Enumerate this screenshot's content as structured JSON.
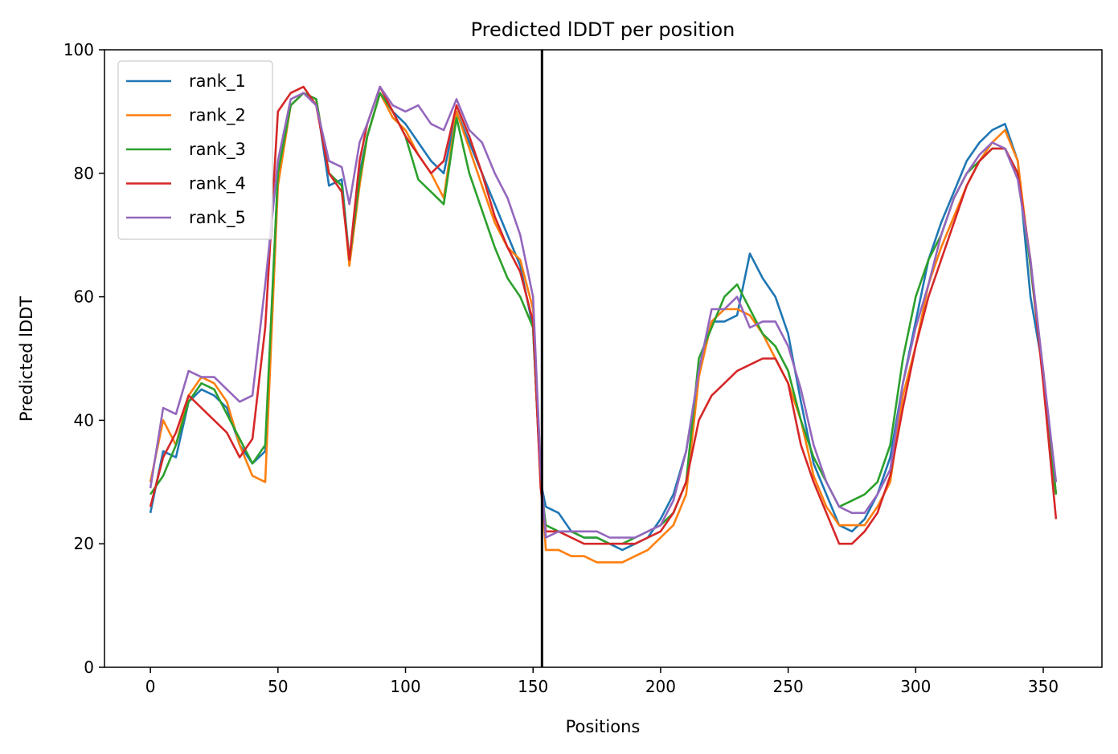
{
  "chart_data": {
    "type": "line",
    "title": "Predicted lDDT per position",
    "xlabel": "Positions",
    "ylabel": "Predicted lDDT",
    "xlim": [
      -18,
      373
    ],
    "ylim": [
      0,
      100
    ],
    "xticks": [
      0,
      50,
      100,
      150,
      200,
      250,
      300,
      350
    ],
    "yticks": [
      0,
      20,
      40,
      60,
      80,
      100
    ],
    "grid": false,
    "legend_position": "upper-left",
    "vline_x": 153.5,
    "vline_color": "#000000",
    "x": [
      0,
      5,
      10,
      15,
      20,
      25,
      30,
      35,
      40,
      45,
      50,
      55,
      60,
      65,
      70,
      75,
      78,
      82,
      85,
      90,
      95,
      100,
      105,
      110,
      115,
      120,
      125,
      130,
      135,
      140,
      145,
      150,
      153,
      155,
      160,
      165,
      170,
      175,
      180,
      185,
      190,
      195,
      200,
      205,
      210,
      215,
      220,
      225,
      230,
      235,
      240,
      245,
      250,
      255,
      260,
      265,
      270,
      275,
      280,
      285,
      290,
      295,
      300,
      305,
      310,
      315,
      320,
      325,
      330,
      335,
      340,
      345,
      350,
      355
    ],
    "series": [
      {
        "name": "rank_1",
        "color": "#1f77b4",
        "values": [
          25,
          35,
          34,
          43,
          45,
          44,
          42,
          36,
          33,
          35,
          80,
          91,
          93,
          92,
          78,
          79,
          66,
          80,
          86,
          93,
          90,
          88,
          85,
          82,
          80,
          90,
          85,
          80,
          75,
          70,
          65,
          55,
          30,
          26,
          25,
          22,
          21,
          21,
          20,
          19,
          20,
          21,
          24,
          28,
          35,
          48,
          56,
          56,
          57,
          67,
          63,
          60,
          54,
          43,
          33,
          28,
          23,
          22,
          24,
          28,
          34,
          46,
          56,
          66,
          72,
          77,
          82,
          85,
          87,
          88,
          82,
          60,
          48,
          28
        ]
      },
      {
        "name": "rank_2",
        "color": "#ff7f0e",
        "values": [
          30,
          40,
          36,
          44,
          47,
          46,
          43,
          36,
          31,
          30,
          78,
          91,
          93,
          92,
          80,
          78,
          65,
          78,
          86,
          93,
          89,
          87,
          83,
          80,
          76,
          90,
          84,
          78,
          72,
          68,
          66,
          58,
          32,
          19,
          19,
          18,
          18,
          17,
          17,
          17,
          18,
          19,
          21,
          23,
          28,
          47,
          56,
          58,
          58,
          57,
          54,
          50,
          46,
          40,
          31,
          26,
          23,
          23,
          23,
          26,
          30,
          44,
          52,
          62,
          68,
          73,
          78,
          82,
          85,
          87,
          82,
          65,
          48,
          28
        ]
      },
      {
        "name": "rank_3",
        "color": "#2ca02c",
        "values": [
          28,
          31,
          36,
          43,
          46,
          45,
          41,
          37,
          33,
          36,
          80,
          91,
          93,
          92,
          80,
          78,
          66,
          79,
          86,
          93,
          90,
          86,
          79,
          77,
          75,
          89,
          80,
          74,
          68,
          63,
          60,
          55,
          30,
          23,
          22,
          22,
          21,
          21,
          20,
          20,
          21,
          22,
          23,
          25,
          30,
          50,
          55,
          60,
          62,
          58,
          54,
          52,
          48,
          40,
          34,
          30,
          26,
          27,
          28,
          30,
          36,
          50,
          60,
          66,
          70,
          76,
          80,
          82,
          84,
          84,
          80,
          65,
          47,
          28
        ]
      },
      {
        "name": "rank_4",
        "color": "#d62728",
        "values": [
          26,
          34,
          38,
          44,
          42,
          40,
          38,
          34,
          37,
          55,
          90,
          93,
          94,
          91,
          80,
          77,
          66,
          82,
          88,
          94,
          90,
          86,
          83,
          80,
          82,
          91,
          86,
          80,
          73,
          68,
          64,
          56,
          29,
          22,
          22,
          21,
          20,
          20,
          20,
          20,
          20,
          21,
          22,
          25,
          30,
          40,
          44,
          46,
          48,
          49,
          50,
          50,
          46,
          36,
          30,
          25,
          20,
          20,
          22,
          25,
          31,
          42,
          52,
          60,
          66,
          72,
          78,
          82,
          84,
          84,
          80,
          66,
          46,
          24
        ]
      },
      {
        "name": "rank_5",
        "color": "#9467bd",
        "values": [
          29,
          42,
          41,
          48,
          47,
          47,
          45,
          43,
          44,
          62,
          82,
          92,
          93,
          91,
          82,
          81,
          75,
          85,
          88,
          94,
          91,
          90,
          91,
          88,
          87,
          92,
          87,
          85,
          80,
          76,
          70,
          60,
          32,
          21,
          22,
          22,
          22,
          22,
          21,
          21,
          21,
          22,
          23,
          27,
          35,
          48,
          58,
          58,
          60,
          55,
          56,
          56,
          52,
          45,
          36,
          30,
          26,
          25,
          25,
          28,
          32,
          46,
          55,
          62,
          70,
          76,
          80,
          83,
          85,
          84,
          79,
          66,
          48,
          30
        ]
      }
    ]
  }
}
